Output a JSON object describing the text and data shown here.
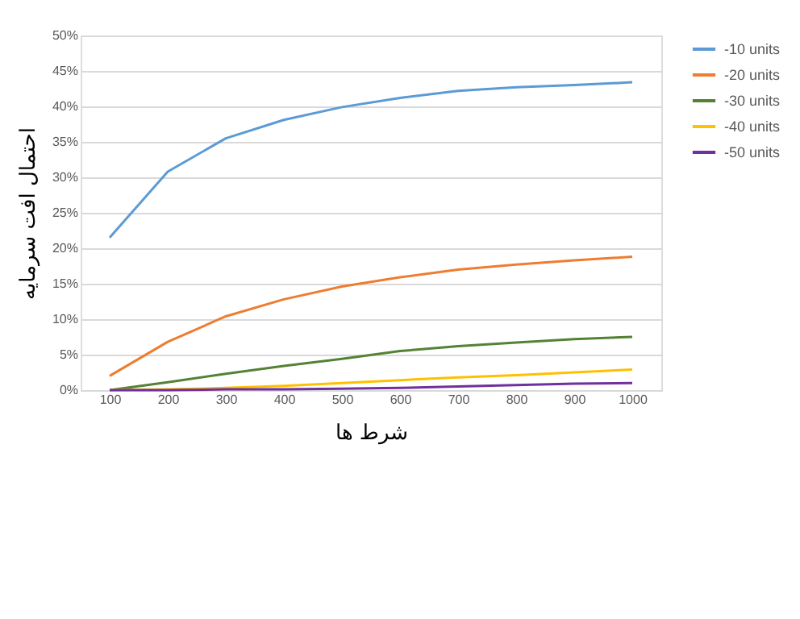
{
  "chart_data": {
    "type": "line",
    "xlabel": "شرط ها",
    "ylabel": "احتمال افت سرمایه",
    "categories": [
      "100",
      "200",
      "300",
      "400",
      "500",
      "600",
      "700",
      "800",
      "900",
      "1000"
    ],
    "series": [
      {
        "name": "-10 units",
        "color": "#5b9bd5",
        "values": [
          21.5,
          30.8,
          35.5,
          38.1,
          39.9,
          41.2,
          42.2,
          42.7,
          43.0,
          43.4
        ]
      },
      {
        "name": "-20 units",
        "color": "#ed7d31",
        "values": [
          2.0,
          6.8,
          10.4,
          12.8,
          14.6,
          15.9,
          17.0,
          17.7,
          18.3,
          18.8
        ]
      },
      {
        "name": "-30 units",
        "color": "#548235",
        "values": [
          0,
          1.1,
          2.3,
          3.4,
          4.4,
          5.5,
          6.2,
          6.7,
          7.2,
          7.5
        ]
      },
      {
        "name": "-40 units",
        "color": "#ffc000",
        "values": [
          0,
          0.1,
          0.3,
          0.6,
          1.0,
          1.4,
          1.8,
          2.1,
          2.5,
          2.9
        ]
      },
      {
        "name": "-50 units",
        "color": "#7030a0",
        "values": [
          0,
          0,
          0.1,
          0.1,
          0.2,
          0.3,
          0.5,
          0.7,
          0.9,
          1.0
        ]
      }
    ],
    "ylim": [
      0,
      50
    ],
    "yticks": [
      {
        "value": 0,
        "label": "0%"
      },
      {
        "value": 5,
        "label": "5%"
      },
      {
        "value": 10,
        "label": "10%"
      },
      {
        "value": 15,
        "label": "15%"
      },
      {
        "value": 20,
        "label": "20%"
      },
      {
        "value": 25,
        "label": "25%"
      },
      {
        "value": 30,
        "label": "30%"
      },
      {
        "value": 35,
        "label": "35%"
      },
      {
        "value": 40,
        "label": "40%"
      },
      {
        "value": 45,
        "label": "45%"
      },
      {
        "value": 50,
        "label": "50%"
      }
    ],
    "grid": "y",
    "legend": "right",
    "marker": "none",
    "line_style": "solid"
  }
}
